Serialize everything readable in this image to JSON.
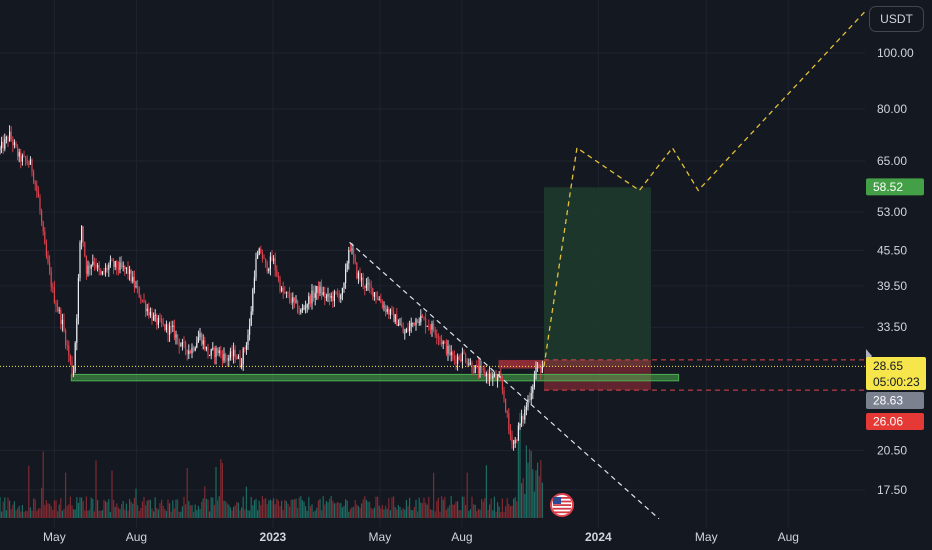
{
  "header": {
    "currency": "USDT"
  },
  "chart_data": {
    "type": "candlestick",
    "y_scale": "log",
    "ylim": [
      15.5,
      125
    ],
    "y_ticks": [
      "100.00",
      "80.00",
      "65.00",
      "53.00",
      "45.50",
      "39.50",
      "33.50",
      "20.50",
      "17.50"
    ],
    "x_ticks": [
      "May",
      "Aug",
      "2023",
      "May",
      "Aug",
      "2024",
      "May",
      "Aug"
    ],
    "price_path": [
      [
        "2022-03-01",
        68
      ],
      [
        "2022-03-12",
        72
      ],
      [
        "2022-03-22",
        66
      ],
      [
        "2022-04-05",
        64
      ],
      [
        "2022-04-13",
        56
      ],
      [
        "2022-04-20",
        46
      ],
      [
        "2022-04-30",
        38
      ],
      [
        "2022-05-10",
        34
      ],
      [
        "2022-05-22",
        27.5
      ],
      [
        "2022-05-26",
        35
      ],
      [
        "2022-05-31",
        51
      ],
      [
        "2022-06-06",
        42
      ],
      [
        "2022-06-14",
        44
      ],
      [
        "2022-06-22",
        41
      ],
      [
        "2022-07-02",
        43
      ],
      [
        "2022-07-12",
        42.5
      ],
      [
        "2022-07-22",
        42
      ],
      [
        "2022-08-01",
        39
      ],
      [
        "2022-08-11",
        36.5
      ],
      [
        "2022-08-21",
        34.5
      ],
      [
        "2022-09-01",
        33.5
      ],
      [
        "2022-09-11",
        33
      ],
      [
        "2022-09-21",
        31
      ],
      [
        "2022-10-01",
        30.5
      ],
      [
        "2022-10-11",
        32.5
      ],
      [
        "2022-10-21",
        30
      ],
      [
        "2022-10-31",
        30.5
      ],
      [
        "2022-11-10",
        29.5
      ],
      [
        "2022-11-20",
        30.2
      ],
      [
        "2022-11-25",
        29
      ],
      [
        "2022-12-01",
        31
      ],
      [
        "2022-12-06",
        33.5
      ],
      [
        "2022-12-12",
        43
      ],
      [
        "2022-12-18",
        45.5
      ],
      [
        "2022-12-24",
        42.5
      ],
      [
        "2023-01-01",
        44
      ],
      [
        "2023-01-11",
        38.5
      ],
      [
        "2023-01-21",
        37.5
      ],
      [
        "2023-02-01",
        35.5
      ],
      [
        "2023-02-11",
        37.5
      ],
      [
        "2023-02-21",
        39
      ],
      [
        "2023-03-03",
        37.5
      ],
      [
        "2023-03-13",
        38
      ],
      [
        "2023-03-21",
        38.5
      ],
      [
        "2023-03-28",
        47
      ],
      [
        "2023-04-05",
        41.5
      ],
      [
        "2023-04-15",
        39.5
      ],
      [
        "2023-04-25",
        38.5
      ],
      [
        "2023-05-05",
        36.5
      ],
      [
        "2023-05-15",
        35
      ],
      [
        "2023-05-23",
        34
      ],
      [
        "2023-05-28",
        32.5
      ],
      [
        "2023-06-03",
        33.5
      ],
      [
        "2023-06-13",
        35
      ],
      [
        "2023-06-23",
        34
      ],
      [
        "2023-07-03",
        33
      ],
      [
        "2023-07-13",
        31
      ],
      [
        "2023-07-23",
        29.5
      ],
      [
        "2023-08-03",
        30
      ],
      [
        "2023-08-13",
        28.5
      ],
      [
        "2023-08-23",
        28
      ],
      [
        "2023-09-03",
        27.5
      ],
      [
        "2023-09-13",
        27
      ],
      [
        "2023-09-18",
        25
      ],
      [
        "2023-09-23",
        22
      ],
      [
        "2023-09-29",
        21
      ],
      [
        "2023-10-04",
        22.5
      ],
      [
        "2023-10-09",
        23.5
      ],
      [
        "2023-10-14",
        25
      ],
      [
        "2023-10-19",
        26.5
      ],
      [
        "2023-10-23",
        28.5
      ],
      [
        "2023-10-27",
        28.3
      ],
      [
        "2023-10-31",
        28.65
      ]
    ],
    "volume_scale": "relative",
    "support_zone": {
      "top": 27.75,
      "bottom": 27.05,
      "start": "2022-05-20",
      "end": "2024-03-31"
    },
    "descending_trendline": [
      [
        "2023-03-28",
        47
      ],
      [
        "2024-03-09",
        15.6
      ]
    ],
    "position": {
      "entry": 28.63,
      "target": 58.52,
      "stop": 26.06,
      "entry_zone_top": 29.4,
      "start": "2023-11-01",
      "end": "2024-02-29"
    },
    "projection_path": [
      [
        "2023-11-01",
        28.65
      ],
      [
        "2023-12-08",
        68.5
      ],
      [
        "2024-02-16",
        57.8
      ],
      [
        "2024-03-24",
        68.5
      ],
      [
        "2024-04-22",
        57.8
      ],
      [
        "2024-10-26",
        118
      ]
    ],
    "price_labels": {
      "last": "28.65",
      "countdown": "05:00:23",
      "entry": "28.63",
      "target": "58.52",
      "stop": "26.06"
    },
    "colors": {
      "background": "#141821",
      "up_candle": "#ecf0f5",
      "down_candle": "#e2434e",
      "volume_up": "#1d6b62",
      "volume_down": "#7f2a31",
      "support_zone": "#4caf50",
      "target_zone": "#1e3a2c",
      "stop_zone": "#c03440",
      "projection": "#e3c038",
      "trendline": "#dfe3ea",
      "last_price": "#f7e64b"
    }
  }
}
